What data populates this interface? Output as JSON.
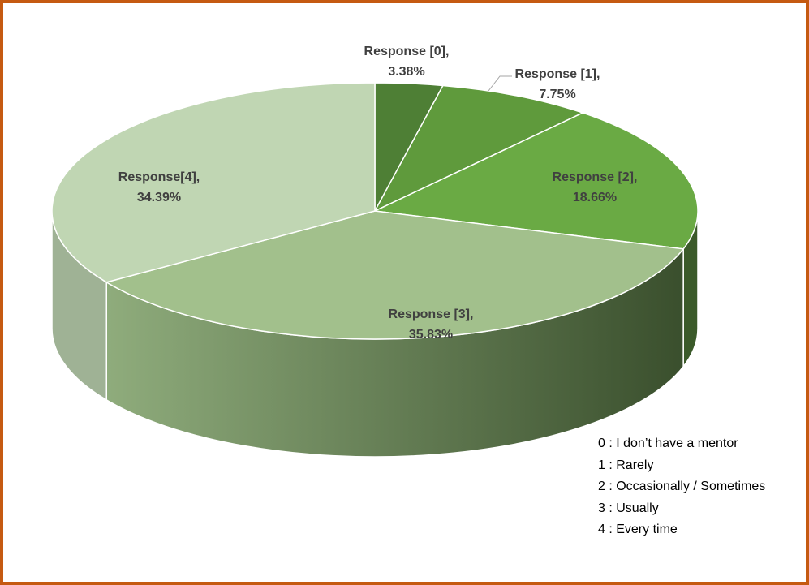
{
  "chart_data": {
    "type": "pie",
    "pie_3d": true,
    "categories": [
      "Response [0],",
      "Response [1],",
      "Response [2],",
      "Response [3],",
      "Response[4],"
    ],
    "values": [
      3.38,
      7.75,
      18.66,
      35.83,
      34.39
    ],
    "value_labels": [
      "3.38%",
      "7.75%",
      "18.66%",
      "35.83%",
      "34.39%"
    ],
    "colors": [
      "#4e7f35",
      "#5f9a3c",
      "#6aaa44",
      "#a2c08c",
      "#c0d6b3"
    ],
    "notes": [
      "0 : I don’t have a mentor",
      "1 : Rarely",
      "2 : Occasionally / Sometimes",
      "3 : Usually",
      "4 : Every time"
    ]
  }
}
